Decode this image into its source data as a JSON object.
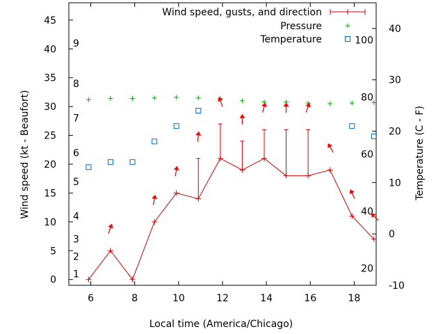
{
  "chart_data": {
    "type": "line",
    "title": "",
    "xlabel": "Local time (America/Chicago)",
    "ylabel": "Wind speed (kt - Beaufort)",
    "y2label": "Temperature (C - F)",
    "xlim": [
      5,
      19
    ],
    "ylim": [
      -1,
      48
    ],
    "y2lim": [
      -10,
      45
    ],
    "x_ticks": [
      6,
      8,
      10,
      12,
      14,
      16,
      18
    ],
    "y_ticks": [
      0,
      5,
      10,
      15,
      20,
      25,
      30,
      35,
      40,
      45
    ],
    "y2_ticks": [
      -10,
      0,
      10,
      20,
      30,
      40
    ],
    "beaufort_labels": [
      {
        "label": "1",
        "kt": 1
      },
      {
        "label": "2",
        "kt": 4
      },
      {
        "label": "3",
        "kt": 7
      },
      {
        "label": "4",
        "kt": 11
      },
      {
        "label": "5",
        "kt": 17
      },
      {
        "label": "6",
        "kt": 22
      },
      {
        "label": "7",
        "kt": 28
      },
      {
        "label": "8",
        "kt": 34
      },
      {
        "label": "9",
        "kt": 41
      }
    ],
    "fahrenheit_labels": [
      {
        "label": "20",
        "f": 20
      },
      {
        "label": "40",
        "f": 40
      },
      {
        "label": "60",
        "f": 60
      },
      {
        "label": "80",
        "f": 80
      },
      {
        "label": "100",
        "f": 100
      }
    ],
    "legend": [
      {
        "key": "wind",
        "label": "Wind speed, gusts, and direction",
        "color": "#cc0000"
      },
      {
        "key": "pressure",
        "label": "Pressure",
        "color": "#00aa00"
      },
      {
        "key": "temperature",
        "label": "Temperature",
        "color": "#0066cc"
      }
    ],
    "series": [
      {
        "name": "Wind speed, gusts, and direction",
        "axis": "y",
        "x": [
          5.9,
          6.9,
          7.9,
          8.9,
          9.9,
          10.9,
          11.9,
          12.9,
          13.9,
          14.9,
          15.9,
          16.9,
          17.9,
          18.9
        ],
        "values": [
          0,
          5,
          0,
          10,
          15,
          14,
          21,
          19,
          21,
          18,
          18,
          19,
          11,
          7
        ],
        "gusts": [
          null,
          null,
          null,
          null,
          null,
          21,
          27,
          24,
          26,
          26,
          26,
          null,
          null,
          null
        ]
      },
      {
        "name": "Pressure",
        "axis": "y",
        "x": [
          5.9,
          6.9,
          7.9,
          8.9,
          9.9,
          10.9,
          11.9,
          12.9,
          13.9,
          14.9,
          15.9,
          16.9,
          17.9,
          18.9
        ],
        "values": [
          31.2,
          31.4,
          31.4,
          31.5,
          31.6,
          31.5,
          31.4,
          31.0,
          30.8,
          30.8,
          30.6,
          30.5,
          30.6,
          30.7
        ]
      },
      {
        "name": "Temperature",
        "axis": "y2",
        "x": [
          5.9,
          6.9,
          7.9,
          8.9,
          9.9,
          10.9,
          17.9,
          18.9
        ],
        "values": [
          13,
          14,
          14,
          18,
          21,
          24,
          21,
          19
        ]
      },
      {
        "name": "Wind direction",
        "axis": "y",
        "x": [
          6.9,
          8.9,
          9.9,
          10.9,
          11.9,
          12.9,
          13.9,
          14.9,
          15.9,
          16.9,
          17.9,
          18.9
        ],
        "values": [
          9,
          14,
          19,
          25,
          31,
          28,
          30,
          30,
          30,
          23,
          15,
          11
        ],
        "direction_deg": [
          200,
          190,
          190,
          185,
          160,
          180,
          195,
          180,
          200,
          150,
          155,
          135
        ]
      }
    ]
  }
}
